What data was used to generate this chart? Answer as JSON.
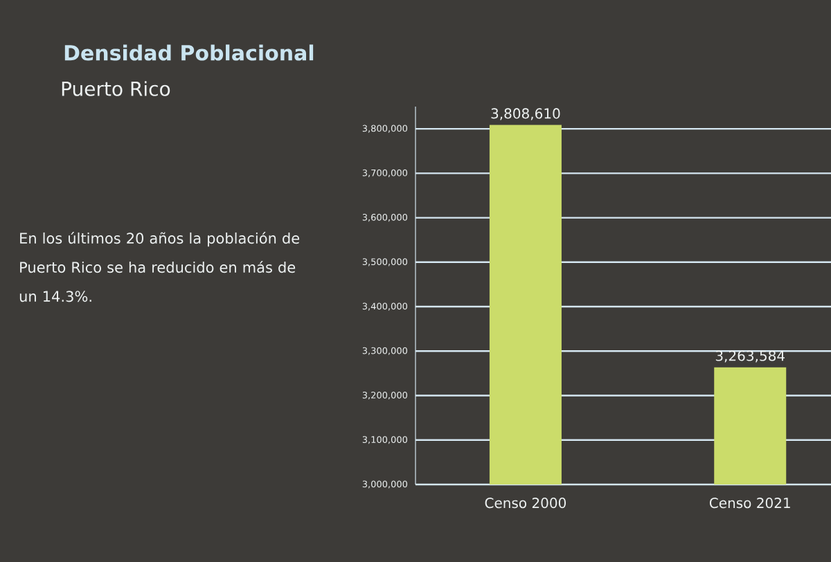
{
  "chart_data": {
    "type": "bar",
    "title": "Densidad Poblacional",
    "subtitle": "Puerto Rico",
    "annotations": [
      "En los últimos  20  años la población de Puerto Rico se ha reducido en más de un 14.3%."
    ],
    "categories": [
      "Censo 2000",
      "Censo 2021"
    ],
    "values": [
      3808610,
      3263584
    ],
    "value_labels": [
      "3,808,610",
      "3,263,584"
    ],
    "color": "#cbdc6a",
    "ylim": [
      3000000,
      3850000
    ],
    "yticks": [
      {
        "value": 3000000,
        "label": "3,000,000"
      },
      {
        "value": 3100000,
        "label": "3,100,000"
      },
      {
        "value": 3200000,
        "label": "3,200,000"
      },
      {
        "value": 3300000,
        "label": "3,300,000"
      },
      {
        "value": 3400000,
        "label": "3,400,000"
      },
      {
        "value": 3500000,
        "label": "3,500,000"
      },
      {
        "value": 3600000,
        "label": "3,600,000"
      },
      {
        "value": 3700000,
        "label": "3,700,000"
      },
      {
        "value": 3800000,
        "label": "3,800,000"
      }
    ],
    "grid": "y"
  }
}
